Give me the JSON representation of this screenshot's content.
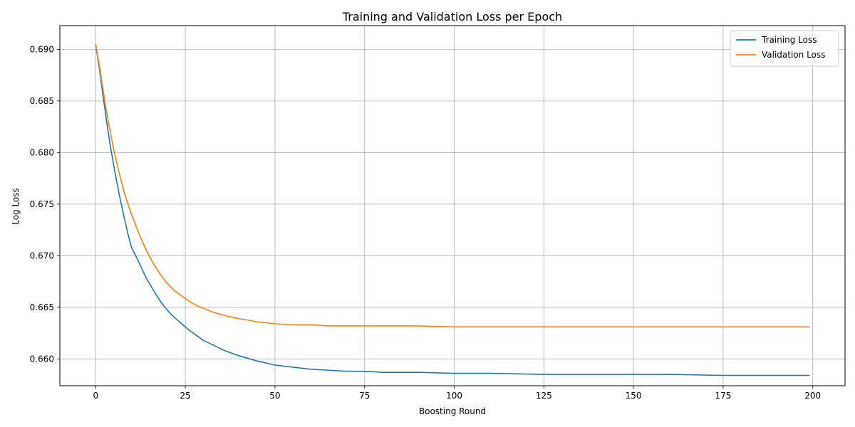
{
  "chart_data": {
    "type": "line",
    "title": "Training and Validation Loss per Epoch",
    "xlabel": "Boosting Round",
    "ylabel": "Log Loss",
    "xlim": [
      -10,
      209
    ],
    "ylim": [
      0.6574,
      0.6923
    ],
    "xticks": [
      0,
      25,
      50,
      75,
      100,
      125,
      150,
      175,
      200
    ],
    "yticks": [
      0.66,
      0.665,
      0.67,
      0.675,
      0.68,
      0.685,
      0.69
    ],
    "grid": true,
    "legend_position": "top-right",
    "series": [
      {
        "name": "Training Loss",
        "color": "#1f77b4",
        "points": [
          [
            0,
            0.6904
          ],
          [
            1,
            0.6882
          ],
          [
            2,
            0.6856
          ],
          [
            3,
            0.6831
          ],
          [
            4,
            0.6808
          ],
          [
            5,
            0.6788
          ],
          [
            6,
            0.6769
          ],
          [
            7,
            0.6752
          ],
          [
            8,
            0.6736
          ],
          [
            9,
            0.6721
          ],
          [
            10,
            0.6708
          ],
          [
            12,
            0.6694
          ],
          [
            14,
            0.6679
          ],
          [
            16,
            0.6667
          ],
          [
            18,
            0.6656
          ],
          [
            20,
            0.6647
          ],
          [
            22,
            0.664
          ],
          [
            24,
            0.6634
          ],
          [
            26,
            0.6628
          ],
          [
            28,
            0.6623
          ],
          [
            30,
            0.6618
          ],
          [
            33,
            0.6613
          ],
          [
            36,
            0.6608
          ],
          [
            40,
            0.6603
          ],
          [
            45,
            0.6598
          ],
          [
            50,
            0.6594
          ],
          [
            55,
            0.6592
          ],
          [
            60,
            0.659
          ],
          [
            65,
            0.6589
          ],
          [
            70,
            0.6588
          ],
          [
            75,
            0.6588
          ],
          [
            80,
            0.6587
          ],
          [
            90,
            0.6587
          ],
          [
            100,
            0.6586
          ],
          [
            110,
            0.6586
          ],
          [
            125,
            0.6585
          ],
          [
            140,
            0.6585
          ],
          [
            150,
            0.6585
          ],
          [
            160,
            0.6585
          ],
          [
            175,
            0.6584
          ],
          [
            190,
            0.6584
          ],
          [
            199,
            0.6584
          ]
        ]
      },
      {
        "name": "Validation Loss",
        "color": "#ff7f0e",
        "points": [
          [
            0,
            0.6905
          ],
          [
            1,
            0.6885
          ],
          [
            2,
            0.6862
          ],
          [
            3,
            0.684
          ],
          [
            4,
            0.6821
          ],
          [
            5,
            0.6803
          ],
          [
            6,
            0.6788
          ],
          [
            7,
            0.6774
          ],
          [
            8,
            0.6761
          ],
          [
            9,
            0.675
          ],
          [
            10,
            0.674
          ],
          [
            12,
            0.6722
          ],
          [
            14,
            0.6706
          ],
          [
            16,
            0.6693
          ],
          [
            18,
            0.6682
          ],
          [
            20,
            0.6673
          ],
          [
            22,
            0.6666
          ],
          [
            24,
            0.6661
          ],
          [
            26,
            0.6656
          ],
          [
            28,
            0.6652
          ],
          [
            30,
            0.6649
          ],
          [
            33,
            0.6645
          ],
          [
            36,
            0.6642
          ],
          [
            40,
            0.6639
          ],
          [
            45,
            0.6636
          ],
          [
            50,
            0.6634
          ],
          [
            55,
            0.6633
          ],
          [
            60,
            0.6633
          ],
          [
            65,
            0.6632
          ],
          [
            70,
            0.6632
          ],
          [
            75,
            0.6632
          ],
          [
            80,
            0.6632
          ],
          [
            90,
            0.6632
          ],
          [
            100,
            0.6631
          ],
          [
            110,
            0.6631
          ],
          [
            125,
            0.6631
          ],
          [
            140,
            0.6631
          ],
          [
            150,
            0.6631
          ],
          [
            160,
            0.6631
          ],
          [
            175,
            0.6631
          ],
          [
            190,
            0.6631
          ],
          [
            199,
            0.6631
          ]
        ]
      }
    ]
  }
}
